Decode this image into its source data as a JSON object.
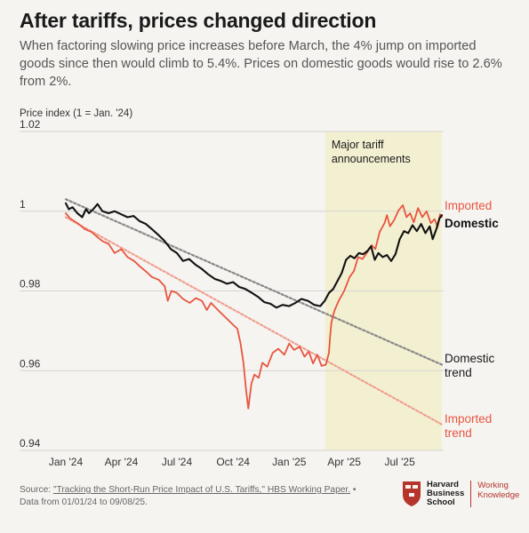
{
  "header": {
    "title": "After tariffs, prices changed direction",
    "subtitle": "When factoring slowing price increases before March, the 4% jump on imported goods since then would climb to 5.4%. Prices on domestic goods would rise to 2.6% from 2%."
  },
  "chart_data": {
    "type": "line",
    "ylabel": "Price index (1 = Jan. '24)",
    "ylim": [
      0.94,
      1.02
    ],
    "yticks": [
      "1.02",
      "1",
      "0.98",
      "0.96",
      "0.94"
    ],
    "ytick_values": [
      1.02,
      1.0,
      0.98,
      0.96,
      0.94
    ],
    "xlim": [
      "2024-01-01",
      "2025-09-08"
    ],
    "xticks": [
      "Jan '24",
      "Apr '24",
      "Jul '24",
      "Oct '24",
      "Jan '25",
      "Apr '25",
      "Jul '25"
    ],
    "xtick_dates": [
      "2024-01-01",
      "2024-04-01",
      "2024-07-01",
      "2024-10-01",
      "2025-01-01",
      "2025-04-01",
      "2025-07-01"
    ],
    "grid": "horizontal",
    "shaded_region": {
      "label": "Major tariff announcements",
      "start": "2025-03-01",
      "end": "2025-09-08",
      "color": "#f3f0d2"
    },
    "series": [
      {
        "name": "Imported",
        "color": "#e8553f",
        "style": "solid",
        "points": [
          [
            "2024-01-01",
            0.9995
          ],
          [
            "2024-01-08",
            0.9982
          ],
          [
            "2024-01-15",
            0.9975
          ],
          [
            "2024-01-22",
            0.9968
          ],
          [
            "2024-02-01",
            0.9955
          ],
          [
            "2024-02-12",
            0.9948
          ],
          [
            "2024-02-22",
            0.9935
          ],
          [
            "2024-03-01",
            0.9925
          ],
          [
            "2024-03-11",
            0.9918
          ],
          [
            "2024-03-21",
            0.9895
          ],
          [
            "2024-04-01",
            0.9905
          ],
          [
            "2024-04-11",
            0.9885
          ],
          [
            "2024-04-22",
            0.9875
          ],
          [
            "2024-05-01",
            0.9862
          ],
          [
            "2024-05-12",
            0.9848
          ],
          [
            "2024-05-21",
            0.9835
          ],
          [
            "2024-06-01",
            0.9828
          ],
          [
            "2024-06-11",
            0.9812
          ],
          [
            "2024-06-16",
            0.9775
          ],
          [
            "2024-06-22",
            0.98
          ],
          [
            "2024-07-01",
            0.9795
          ],
          [
            "2024-07-11",
            0.978
          ],
          [
            "2024-07-22",
            0.977
          ],
          [
            "2024-08-01",
            0.9782
          ],
          [
            "2024-08-11",
            0.9775
          ],
          [
            "2024-08-19",
            0.9752
          ],
          [
            "2024-08-26",
            0.977
          ],
          [
            "2024-09-01",
            0.976
          ],
          [
            "2024-09-11",
            0.9745
          ],
          [
            "2024-09-21",
            0.973
          ],
          [
            "2024-10-01",
            0.9715
          ],
          [
            "2024-10-08",
            0.9705
          ],
          [
            "2024-10-13",
            0.967
          ],
          [
            "2024-10-18",
            0.962
          ],
          [
            "2024-10-22",
            0.9555
          ],
          [
            "2024-10-26",
            0.9505
          ],
          [
            "2024-10-31",
            0.9568
          ],
          [
            "2024-11-05",
            0.959
          ],
          [
            "2024-11-12",
            0.9582
          ],
          [
            "2024-11-18",
            0.962
          ],
          [
            "2024-11-26",
            0.961
          ],
          [
            "2024-12-05",
            0.9645
          ],
          [
            "2024-12-14",
            0.9655
          ],
          [
            "2024-12-24",
            0.964
          ],
          [
            "2025-01-01",
            0.9668
          ],
          [
            "2025-01-09",
            0.9652
          ],
          [
            "2025-01-18",
            0.966
          ],
          [
            "2025-01-26",
            0.9635
          ],
          [
            "2025-02-02",
            0.9648
          ],
          [
            "2025-02-09",
            0.9618
          ],
          [
            "2025-02-16",
            0.964
          ],
          [
            "2025-02-23",
            0.9612
          ],
          [
            "2025-03-02",
            0.9615
          ],
          [
            "2025-03-07",
            0.9645
          ],
          [
            "2025-03-09",
            0.9685
          ],
          [
            "2025-03-11",
            0.972
          ],
          [
            "2025-03-16",
            0.975
          ],
          [
            "2025-03-23",
            0.9775
          ],
          [
            "2025-04-01",
            0.98
          ],
          [
            "2025-04-10",
            0.9835
          ],
          [
            "2025-04-17",
            0.985
          ],
          [
            "2025-04-24",
            0.9885
          ],
          [
            "2025-05-01",
            0.988
          ],
          [
            "2025-05-08",
            0.9895
          ],
          [
            "2025-05-16",
            0.9915
          ],
          [
            "2025-05-22",
            0.9905
          ],
          [
            "2025-05-29",
            0.9948
          ],
          [
            "2025-06-06",
            0.997
          ],
          [
            "2025-06-10",
            0.999
          ],
          [
            "2025-06-15",
            0.9962
          ],
          [
            "2025-06-22",
            0.9978
          ],
          [
            "2025-06-29",
            1.0002
          ],
          [
            "2025-07-06",
            1.0015
          ],
          [
            "2025-07-12",
            0.9985
          ],
          [
            "2025-07-18",
            0.9995
          ],
          [
            "2025-07-24",
            0.9972
          ],
          [
            "2025-07-31",
            1.0008
          ],
          [
            "2025-08-07",
            0.9985
          ],
          [
            "2025-08-14",
            1.0
          ],
          [
            "2025-08-21",
            0.997
          ],
          [
            "2025-08-27",
            0.998
          ],
          [
            "2025-09-01",
            0.996
          ],
          [
            "2025-09-05",
            0.9992
          ],
          [
            "2025-09-08",
            0.9985
          ]
        ]
      },
      {
        "name": "Domestic",
        "color": "#111111",
        "style": "solid",
        "points": [
          [
            "2024-01-01",
            1.002
          ],
          [
            "2024-01-06",
            1.0005
          ],
          [
            "2024-01-12",
            1.001
          ],
          [
            "2024-01-20",
            0.9995
          ],
          [
            "2024-01-28",
            0.9985
          ],
          [
            "2024-02-03",
            1.0005
          ],
          [
            "2024-02-08",
            0.9995
          ],
          [
            "2024-02-15",
            1.0005
          ],
          [
            "2024-02-22",
            1.0018
          ],
          [
            "2024-03-01",
            1.0
          ],
          [
            "2024-03-11",
            0.9995
          ],
          [
            "2024-03-21",
            1.0
          ],
          [
            "2024-04-01",
            0.9992
          ],
          [
            "2024-04-11",
            0.9985
          ],
          [
            "2024-04-21",
            0.9988
          ],
          [
            "2024-05-01",
            0.9975
          ],
          [
            "2024-05-11",
            0.9968
          ],
          [
            "2024-05-21",
            0.9955
          ],
          [
            "2024-06-01",
            0.994
          ],
          [
            "2024-06-11",
            0.9925
          ],
          [
            "2024-06-21",
            0.9905
          ],
          [
            "2024-07-01",
            0.9895
          ],
          [
            "2024-07-11",
            0.9875
          ],
          [
            "2024-07-21",
            0.988
          ],
          [
            "2024-08-01",
            0.9865
          ],
          [
            "2024-08-11",
            0.9855
          ],
          [
            "2024-08-21",
            0.9842
          ],
          [
            "2024-09-01",
            0.983
          ],
          [
            "2024-09-11",
            0.9825
          ],
          [
            "2024-09-21",
            0.9818
          ],
          [
            "2024-10-01",
            0.9822
          ],
          [
            "2024-10-11",
            0.981
          ],
          [
            "2024-10-21",
            0.9805
          ],
          [
            "2024-11-01",
            0.9795
          ],
          [
            "2024-11-11",
            0.9785
          ],
          [
            "2024-11-21",
            0.9772
          ],
          [
            "2024-12-01",
            0.9768
          ],
          [
            "2024-12-11",
            0.9758
          ],
          [
            "2024-12-21",
            0.9765
          ],
          [
            "2025-01-01",
            0.9762
          ],
          [
            "2025-01-11",
            0.977
          ],
          [
            "2025-01-21",
            0.978
          ],
          [
            "2025-02-01",
            0.9775
          ],
          [
            "2025-02-11",
            0.9765
          ],
          [
            "2025-02-21",
            0.9762
          ],
          [
            "2025-02-28",
            0.9775
          ],
          [
            "2025-03-07",
            0.9795
          ],
          [
            "2025-03-14",
            0.9805
          ],
          [
            "2025-03-21",
            0.9825
          ],
          [
            "2025-03-28",
            0.9845
          ],
          [
            "2025-04-04",
            0.9878
          ],
          [
            "2025-04-11",
            0.9888
          ],
          [
            "2025-04-18",
            0.9882
          ],
          [
            "2025-04-25",
            0.9895
          ],
          [
            "2025-05-02",
            0.9892
          ],
          [
            "2025-05-09",
            0.99
          ],
          [
            "2025-05-15",
            0.9912
          ],
          [
            "2025-05-21",
            0.9878
          ],
          [
            "2025-05-27",
            0.9895
          ],
          [
            "2025-06-03",
            0.9885
          ],
          [
            "2025-06-10",
            0.989
          ],
          [
            "2025-06-17",
            0.9875
          ],
          [
            "2025-06-24",
            0.9892
          ],
          [
            "2025-07-01",
            0.993
          ],
          [
            "2025-07-08",
            0.995
          ],
          [
            "2025-07-15",
            0.9945
          ],
          [
            "2025-07-22",
            0.9965
          ],
          [
            "2025-07-29",
            0.995
          ],
          [
            "2025-08-05",
            0.9968
          ],
          [
            "2025-08-12",
            0.9945
          ],
          [
            "2025-08-19",
            0.9962
          ],
          [
            "2025-08-24",
            0.993
          ],
          [
            "2025-08-30",
            0.9955
          ],
          [
            "2025-09-04",
            0.9982
          ],
          [
            "2025-09-08",
            0.999
          ]
        ]
      },
      {
        "name": "Domestic trend",
        "color": "#888888",
        "style": "dotted",
        "points": [
          [
            "2024-01-01",
            1.003
          ],
          [
            "2025-09-08",
            0.9615
          ]
        ]
      },
      {
        "name": "Imported trend",
        "color": "#f0a090",
        "style": "dotted",
        "points": [
          [
            "2024-01-01",
            0.9985
          ],
          [
            "2025-09-08",
            0.9465
          ]
        ]
      }
    ],
    "annotations": {
      "imported": "Imported",
      "domestic": "Domestic",
      "domestic_trend": [
        "Domestic",
        "trend"
      ],
      "imported_trend": [
        "Imported",
        "trend"
      ],
      "tariff": [
        "Major tariff",
        "announcements"
      ]
    }
  },
  "footer": {
    "source_prefix": "Source: ",
    "source_link": "\"Tracking the Short-Run Price Impact of U.S. Tariffs,\" HBS Working Paper.",
    "source_suffix": " • Data from 01/01/24 to 09/08/25.",
    "logo_lines": [
      "Harvard",
      "Business",
      "School"
    ],
    "wk_lines": [
      "Working",
      "Knowledge"
    ],
    "logo_color": "#b5342b"
  }
}
